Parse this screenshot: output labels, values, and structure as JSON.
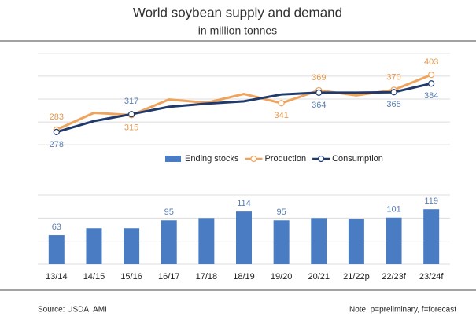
{
  "chart_data": [
    {
      "type": "line",
      "title": "World soybean supply and demand",
      "subtitle": "in million tonnes",
      "categories": [
        "13/14",
        "14/15",
        "15/16",
        "16/17",
        "17/18",
        "18/19",
        "19/20",
        "20/21",
        "21/22p",
        "22/23f",
        "23/24f"
      ],
      "series": [
        {
          "name": "Production",
          "color": "#eea45c",
          "label_color": "#e39a50",
          "values": [
            283,
            320,
            315,
            349,
            342,
            361,
            341,
            369,
            358,
            370,
            403
          ],
          "labeled_points": [
            0,
            2,
            6,
            7,
            9,
            10
          ]
        },
        {
          "name": "Consumption",
          "color": "#1f3a6b",
          "label_color": "#5b7fb0",
          "values": [
            278,
            302,
            317,
            333,
            340,
            345,
            360,
            364,
            364,
            365,
            384
          ],
          "labeled_points": [
            0,
            2,
            7,
            9,
            10
          ]
        }
      ],
      "ylim": [
        240,
        460
      ],
      "ygrid": [
        250,
        300,
        350,
        400,
        450
      ]
    },
    {
      "type": "bar",
      "categories": [
        "13/14",
        "14/15",
        "15/16",
        "16/17",
        "17/18",
        "18/19",
        "19/20",
        "20/21",
        "21/22p",
        "22/23f",
        "23/24f"
      ],
      "series": [
        {
          "name": "Ending stocks",
          "color": "#4a7cc4",
          "label_color": "#5b7fb0",
          "values": [
            63,
            78,
            78,
            95,
            100,
            114,
            95,
            100,
            98,
            101,
            119
          ],
          "labeled_points": [
            0,
            3,
            5,
            6,
            9,
            10
          ]
        }
      ],
      "ylim": [
        0,
        150
      ],
      "ygrid": [
        0,
        50,
        100,
        150
      ],
      "source": "Source: USDA, AMI",
      "note": "Note: p=preliminary, f=forecast"
    }
  ]
}
